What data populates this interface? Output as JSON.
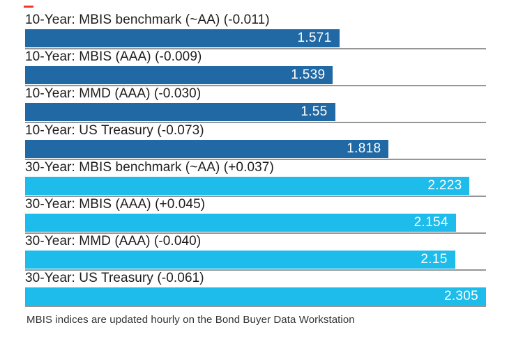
{
  "chart_data": {
    "type": "bar",
    "orientation": "horizontal",
    "title": "",
    "categories": [
      "10-Year: MBIS benchmark (~AA) (-0.011)",
      "10-Year: MBIS (AAA) (-0.009)",
      "10-Year: MMD (AAA) (-0.030)",
      "10-Year: US Treasury (-0.073)",
      "30-Year: MBIS benchmark (~AA) (+0.037)",
      "30-Year: MBIS (AAA) (+0.045)",
      "30-Year: MMD (AAA) (-0.040)",
      "30-Year: US Treasury (-0.061)"
    ],
    "values": [
      1.571,
      1.539,
      1.55,
      1.818,
      2.223,
      2.154,
      2.15,
      2.305
    ],
    "value_labels": [
      "1.571",
      "1.539",
      "1.55",
      "1.818",
      "2.223",
      "2.154",
      "2.15",
      "2.305"
    ],
    "groups": [
      "ten_year",
      "ten_year",
      "ten_year",
      "ten_year",
      "thirty_year",
      "thirty_year",
      "thirty_year",
      "thirty_year"
    ],
    "colors": {
      "ten_year": "#2169a4",
      "thirty_year": "#1dbcea"
    },
    "separator_color": "#969696",
    "xlim": [
      0,
      2.305
    ],
    "xlabel": "",
    "ylabel": "",
    "grid": false,
    "legend": "none",
    "footnote": "MBIS indices are updated hourly on the Bond Buyer Data Workstation"
  },
  "accent": {
    "red_dash_color": "#ee3b2e"
  }
}
